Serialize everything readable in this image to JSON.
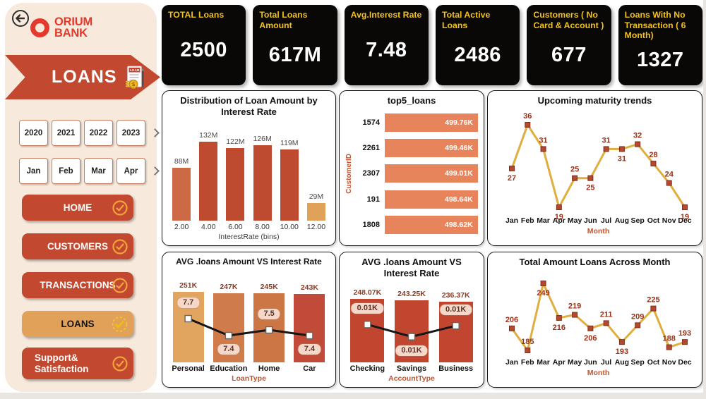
{
  "sidebar": {
    "logo": {
      "line1": "ORIUM",
      "line2": "BANK",
      "color": "#E43A2E"
    },
    "banner": {
      "label": "LOANS",
      "icon_label": "LOAN",
      "bg": "#C2482F"
    },
    "year_slicer": {
      "items": [
        "2020",
        "2021",
        "2022",
        "2023"
      ]
    },
    "month_slicer": {
      "items": [
        "Jan",
        "Feb",
        "Mar",
        "Apr"
      ]
    },
    "nav": [
      {
        "label": "HOME"
      },
      {
        "label": "CUSTOMERS"
      },
      {
        "label": "TRANSACTIONS"
      },
      {
        "label": "LOANS",
        "active": true
      },
      {
        "label": "Support&",
        "label2": "Satisfaction"
      }
    ]
  },
  "kpis": [
    {
      "title": "TOTAL Loans",
      "value": "2500"
    },
    {
      "title": "Total Loans Amount",
      "value": "617M"
    },
    {
      "title": "Avg.Interest Rate",
      "value": "7.48"
    },
    {
      "title": "Total Active Loans",
      "value": "2486"
    },
    {
      "title": "Customers ( No Card & Account )",
      "value": "677"
    },
    {
      "title": "Loans With No Transaction ( 6 Month)",
      "value": "1327"
    }
  ],
  "colors": {
    "sidebar_bg": "#F7E9DC",
    "nav_red": "#C2482F",
    "active_tan": "#E1A159",
    "check_orange": "#F2A43B",
    "check_gold": "#F3C52F",
    "kpi_bg": "#0A0806",
    "kpi_title": "#F2C21A",
    "line_gold": "#DFAE3C",
    "marker_brick": "#B5492F"
  },
  "chart_data": [
    {
      "type": "bar",
      "title": "Distribution of Loan Amount by Interest Rate",
      "categories": [
        "2.00",
        "4.00",
        "6.00",
        "8.00",
        "10.00",
        "12.00"
      ],
      "values": [
        88,
        132,
        122,
        126,
        119,
        29
      ],
      "labels": [
        "88M",
        "132M",
        "122M",
        "126M",
        "119M",
        "29M"
      ],
      "colors": [
        "#CD6A45",
        "#BE4A2F",
        "#BE4A2F",
        "#BE4A2F",
        "#BE4A2F",
        "#E0A159"
      ],
      "xlabel": "InterestRate (bins)",
      "ylim": [
        0,
        140
      ]
    },
    {
      "type": "hbar",
      "title": "top5_loans",
      "categories": [
        "1574",
        "2261",
        "2307",
        "191",
        "1808"
      ],
      "values": [
        499.76,
        499.46,
        499.01,
        498.64,
        498.62
      ],
      "labels": [
        "499.76K",
        "499.46K",
        "499.01K",
        "498.64K",
        "498.62K"
      ],
      "bar_color": "#E8845C",
      "ylabel": "CustomerID"
    },
    {
      "type": "line",
      "title": "Upcoming maturity trends",
      "categories": [
        "Jan",
        "Feb",
        "Mar",
        "Apr",
        "May",
        "Jun",
        "Jul",
        "Aug",
        "Sep",
        "Oct",
        "Nov",
        "Dec"
      ],
      "values": [
        27,
        36,
        31,
        19,
        25,
        25,
        31,
        31,
        32,
        28,
        24,
        19
      ],
      "label_pos": [
        "below",
        "above",
        "above",
        "below",
        "above",
        "below",
        "above",
        "below",
        "above",
        "above",
        "above",
        "below"
      ],
      "xlabel": "Month",
      "line_color": "#DFAE3C",
      "marker_color": "#B5492F"
    },
    {
      "type": "combo",
      "title": "AVG .loans Amount VS Interest Rate",
      "categories": [
        "Personal",
        "Education",
        "Home",
        "Car"
      ],
      "values": [
        251,
        247,
        245,
        243
      ],
      "labels": [
        "251K",
        "247K",
        "245K",
        "243K"
      ],
      "colors": [
        "#E2A55F",
        "#CF7B4B",
        "#CC7646",
        "#C14A38"
      ],
      "line_values": [
        7.7,
        7.4,
        7.5,
        7.4
      ],
      "line_labels": [
        "7.7",
        "7.4",
        "7.5",
        "7.4"
      ],
      "line_label_pos": [
        "above",
        "below",
        "above",
        "below"
      ],
      "xlabel": "LoanType"
    },
    {
      "type": "combo",
      "title": "AVG .loans Amount VS Interest Rate",
      "categories": [
        "Checking",
        "Savings",
        "Business"
      ],
      "values": [
        248.07,
        243.25,
        236.37
      ],
      "labels": [
        "248.07K",
        "243.25K",
        "236.37K"
      ],
      "colors": [
        "#C1452F",
        "#C1452F",
        "#C1452F"
      ],
      "line_values": [
        0.01,
        0.01,
        0.01
      ],
      "line_shape": [
        0.9,
        0.1,
        0.82
      ],
      "line_labels": [
        "0.01K",
        "0.01K",
        "0.01K"
      ],
      "line_label_pos": [
        "above",
        "below",
        "above"
      ],
      "xlabel": "AccountType"
    },
    {
      "type": "line",
      "title": "Total Amount Loans Across Month",
      "categories": [
        "Jan",
        "Feb",
        "Mar",
        "Apr",
        "May",
        "Jun",
        "Jul",
        "Aug",
        "Sep",
        "Oct",
        "Nov",
        "Dec"
      ],
      "values": [
        206,
        185,
        249,
        216,
        219,
        206,
        211,
        193,
        209,
        225,
        188,
        193
      ],
      "label_pos": [
        "above",
        "above",
        "below",
        "below",
        "above",
        "below",
        "above",
        "below",
        "above",
        "above",
        "above",
        "above"
      ],
      "xlabel": "Month",
      "line_color": "#DFAE3C",
      "marker_color": "#B5492F"
    }
  ]
}
